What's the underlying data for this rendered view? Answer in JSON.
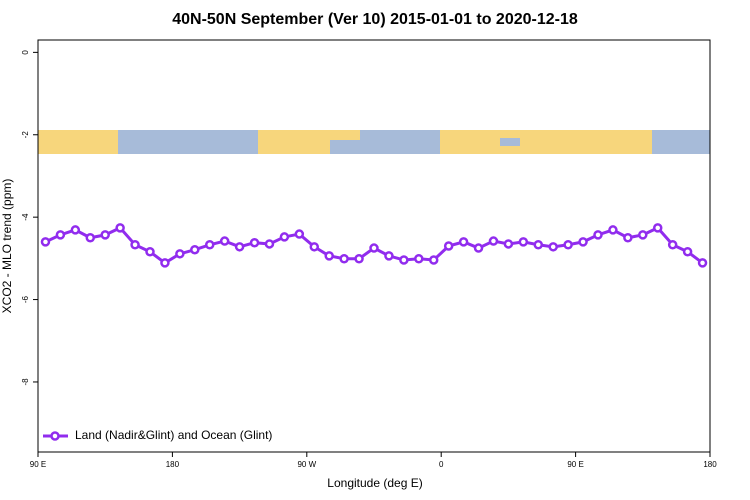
{
  "chart_data": {
    "type": "line",
    "title": "40N-50N September (Ver 10)   2015-01-01 to 2020-12-18",
    "x_label": "Longitude (deg E)",
    "y_label": "XCO2 - MLO trend (ppm)",
    "x": [
      95,
      105,
      115,
      125,
      135,
      145,
      155,
      165,
      175,
      185,
      195,
      205,
      215,
      225,
      235,
      245,
      255,
      265,
      275,
      285,
      295,
      305,
      315,
      325,
      335,
      345,
      355,
      365,
      375,
      385,
      395,
      405,
      415,
      425,
      435,
      445,
      455,
      465,
      475,
      485,
      495,
      505,
      515,
      525,
      535
    ],
    "series": [
      {
        "name": "Land (Nadir&Glint) and Ocean (Glint)",
        "color": "#912cee",
        "values": [
          -4.6,
          -4.43,
          -4.31,
          -4.5,
          -4.43,
          -4.26,
          -4.67,
          -4.84,
          -5.11,
          -4.89,
          -4.79,
          -4.67,
          -4.58,
          -4.72,
          -4.62,
          -4.65,
          -4.48,
          -4.41,
          -4.72,
          -4.94,
          -5.01,
          -5.01,
          -4.75,
          -4.94,
          -5.04,
          -5.01,
          -5.04,
          -4.7,
          -4.6,
          -4.75,
          -4.58,
          -4.65,
          -4.6,
          -4.67,
          -4.72,
          -4.67,
          -4.6,
          -4.43,
          -4.31,
          -4.5,
          -4.43,
          -4.26,
          -4.67,
          -4.84,
          -5.11
        ]
      }
    ],
    "xlim": [
      90,
      540
    ],
    "xticks": [
      {
        "value": 90,
        "label": "90 E"
      },
      180,
      {
        "value": 270,
        "label": "90 W"
      },
      {
        "value": 360,
        "label": "0"
      },
      {
        "value": 450,
        "label": "90 E"
      },
      {
        "value": 540,
        "label": "180"
      }
    ],
    "ylim": [
      -9.7,
      0.3
    ],
    "yticks": [
      0,
      -2,
      -4,
      -6,
      -8
    ],
    "legend": "bottom-left"
  }
}
